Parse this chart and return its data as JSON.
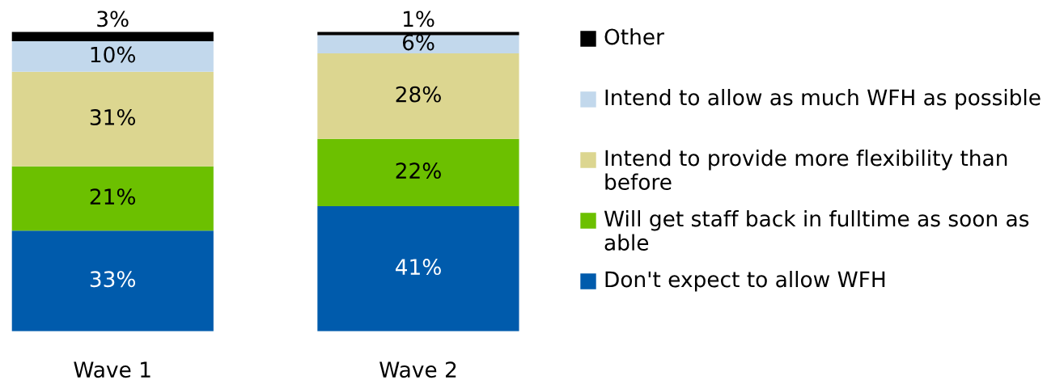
{
  "chart_data": {
    "type": "bar",
    "stacked": true,
    "categories": [
      "Wave 1",
      "Wave 2"
    ],
    "legend": "right",
    "grid": false,
    "series": [
      {
        "name": "Don't expect to allow WFH",
        "color": "#005bac",
        "values": [
          33,
          41
        ],
        "value_labels": [
          "33%",
          "41%"
        ]
      },
      {
        "name": "Will get staff back in fulltime as soon as able",
        "color": "#6cc000",
        "values": [
          21,
          22
        ],
        "value_labels": [
          "21%",
          "22%"
        ]
      },
      {
        "name": "Intend to provide more flexibility than before",
        "color": "#dcd690",
        "values": [
          31,
          28
        ],
        "value_labels": [
          "31%",
          "28%"
        ]
      },
      {
        "name": "Intend to allow as much WFH as possible",
        "color": "#c2d8ec",
        "values": [
          10,
          6
        ],
        "value_labels": [
          "10%",
          "6%"
        ]
      },
      {
        "name": "Other",
        "color": "#000000",
        "values": [
          3,
          1
        ],
        "value_labels": [
          "3%",
          "1%"
        ]
      }
    ]
  }
}
